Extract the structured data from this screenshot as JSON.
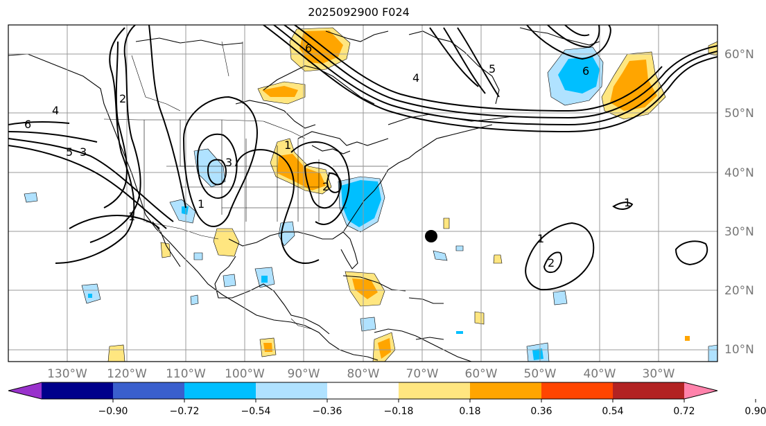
{
  "title": "2025092900 F024",
  "lat_labels": [
    "60°N",
    "50°N",
    "40°N",
    "30°N",
    "20°N",
    "10°N"
  ],
  "lon_labels": [
    "130°W",
    "120°W",
    "110°W",
    "100°W",
    "90°W",
    "80°W",
    "70°W",
    "60°W",
    "50°W",
    "40°W",
    "30°W"
  ],
  "colorbar": {
    "ticks": [
      "−0.90",
      "−0.72",
      "−0.54",
      "−0.36",
      "−0.18",
      "0.18",
      "0.36",
      "0.54",
      "0.72",
      "0.90"
    ],
    "colors": [
      "#9932cc",
      "#00008b",
      "#3a5fcd",
      "#00bfff",
      "#b0e2ff",
      "#ffffff",
      "#ffe680",
      "#ffa500",
      "#ff4500",
      "#b22222",
      "#ff82ab"
    ]
  },
  "contour_labels": [
    "6",
    "5",
    "4",
    "3",
    "2",
    "1",
    "6",
    "5",
    "4",
    "3",
    "2",
    "1",
    "1",
    "1",
    "2",
    "6",
    "1"
  ],
  "colors": {
    "positive_light": "#ffe680",
    "positive": "#ffa500",
    "negative_light": "#b0e2ff",
    "negative": "#00bfff",
    "grid": "#999999"
  }
}
